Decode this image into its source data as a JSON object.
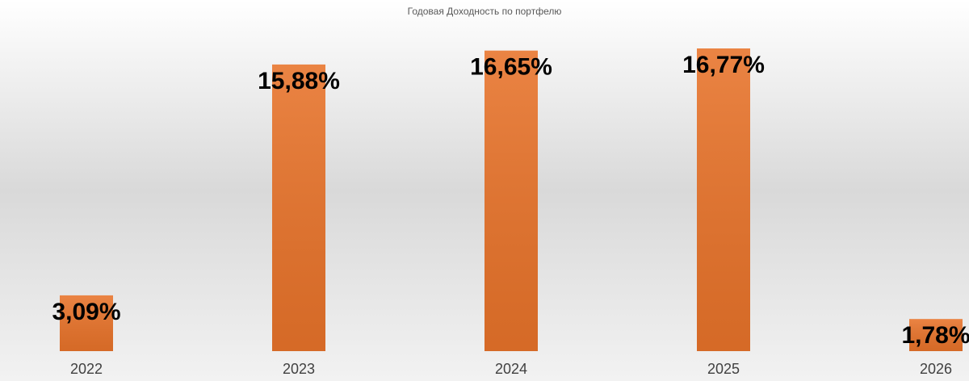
{
  "chart_data": {
    "type": "bar",
    "title": "Годовая Доходность по портфелю",
    "categories": [
      "2022",
      "2023",
      "2024",
      "2025",
      "2026"
    ],
    "values": [
      3.09,
      15.88,
      16.65,
      16.77,
      1.78
    ],
    "value_labels": [
      "3,09%",
      "15,88%",
      "16,65%",
      "16,77%",
      "1,78%"
    ],
    "color": "#e8732a"
  }
}
